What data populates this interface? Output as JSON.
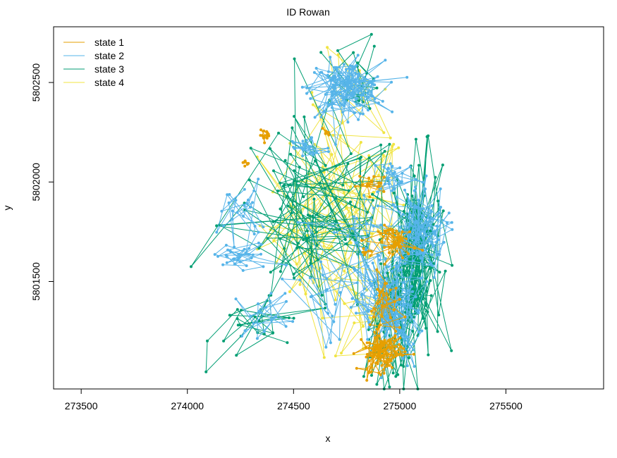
{
  "chart_data": {
    "type": "line",
    "title": "ID Rowan",
    "xlabel": "x",
    "ylabel": "y",
    "xlim": [
      273370,
      275960
    ],
    "ylim": [
      5800960,
      5802780
    ],
    "x_ticks": [
      273500,
      274000,
      274500,
      275000,
      275500
    ],
    "y_ticks": [
      5801500,
      5802000,
      5802500
    ],
    "grid": false,
    "legend_position": "top-left",
    "series": [
      {
        "name": "state 1",
        "color": "#E69F00",
        "clusters": [
          {
            "cx": 274370,
            "cy": 5802235,
            "sx": 15,
            "sy": 12,
            "n": 14
          },
          {
            "cx": 274270,
            "cy": 5802090,
            "sx": 10,
            "sy": 10,
            "n": 6
          },
          {
            "cx": 274640,
            "cy": 5802250,
            "sx": 15,
            "sy": 12,
            "n": 5
          },
          {
            "cx": 274880,
            "cy": 5801990,
            "sx": 40,
            "sy": 25,
            "n": 18
          },
          {
            "cx": 274990,
            "cy": 5801700,
            "sx": 45,
            "sy": 40,
            "n": 50
          },
          {
            "cx": 274915,
            "cy": 5801150,
            "sx": 55,
            "sy": 50,
            "n": 90
          },
          {
            "cx": 274930,
            "cy": 5801380,
            "sx": 35,
            "sy": 80,
            "n": 30
          },
          {
            "cx": 274840,
            "cy": 5801650,
            "sx": 15,
            "sy": 15,
            "n": 6
          }
        ]
      },
      {
        "name": "state 2",
        "color": "#56B4E9",
        "clusters": [
          {
            "cx": 274750,
            "cy": 5802470,
            "sx": 90,
            "sy": 70,
            "n": 120
          },
          {
            "cx": 274560,
            "cy": 5802170,
            "sx": 60,
            "sy": 40,
            "n": 25
          },
          {
            "cx": 274980,
            "cy": 5802030,
            "sx": 60,
            "sy": 50,
            "n": 30
          },
          {
            "cx": 275080,
            "cy": 5801750,
            "sx": 70,
            "sy": 120,
            "n": 110
          },
          {
            "cx": 274950,
            "cy": 5801350,
            "sx": 80,
            "sy": 150,
            "n": 110
          },
          {
            "cx": 274260,
            "cy": 5801620,
            "sx": 90,
            "sy": 40,
            "n": 30
          },
          {
            "cx": 274250,
            "cy": 5801850,
            "sx": 50,
            "sy": 80,
            "n": 25
          },
          {
            "cx": 274380,
            "cy": 5801340,
            "sx": 80,
            "sy": 60,
            "n": 20
          },
          {
            "cx": 274640,
            "cy": 5801450,
            "sx": 100,
            "sy": 150,
            "n": 25
          },
          {
            "cx": 274820,
            "cy": 5801750,
            "sx": 100,
            "sy": 120,
            "n": 20
          }
        ]
      },
      {
        "name": "state 3",
        "color": "#009E73",
        "clusters": [
          {
            "cx": 275080,
            "cy": 5801650,
            "sx": 60,
            "sy": 250,
            "n": 150
          },
          {
            "cx": 274950,
            "cy": 5801300,
            "sx": 60,
            "sy": 150,
            "n": 60
          },
          {
            "cx": 274600,
            "cy": 5801800,
            "sx": 220,
            "sy": 250,
            "n": 100
          },
          {
            "cx": 274360,
            "cy": 5801300,
            "sx": 120,
            "sy": 100,
            "n": 25
          },
          {
            "cx": 274800,
            "cy": 5802550,
            "sx": 60,
            "sy": 100,
            "n": 20
          }
        ]
      },
      {
        "name": "state 4",
        "color": "#F0E442",
        "clusters": [
          {
            "cx": 274700,
            "cy": 5801800,
            "sx": 180,
            "sy": 260,
            "n": 90
          },
          {
            "cx": 274800,
            "cy": 5802350,
            "sx": 120,
            "sy": 150,
            "n": 15
          },
          {
            "cx": 274850,
            "cy": 5801350,
            "sx": 80,
            "sy": 150,
            "n": 25
          }
        ]
      }
    ]
  }
}
